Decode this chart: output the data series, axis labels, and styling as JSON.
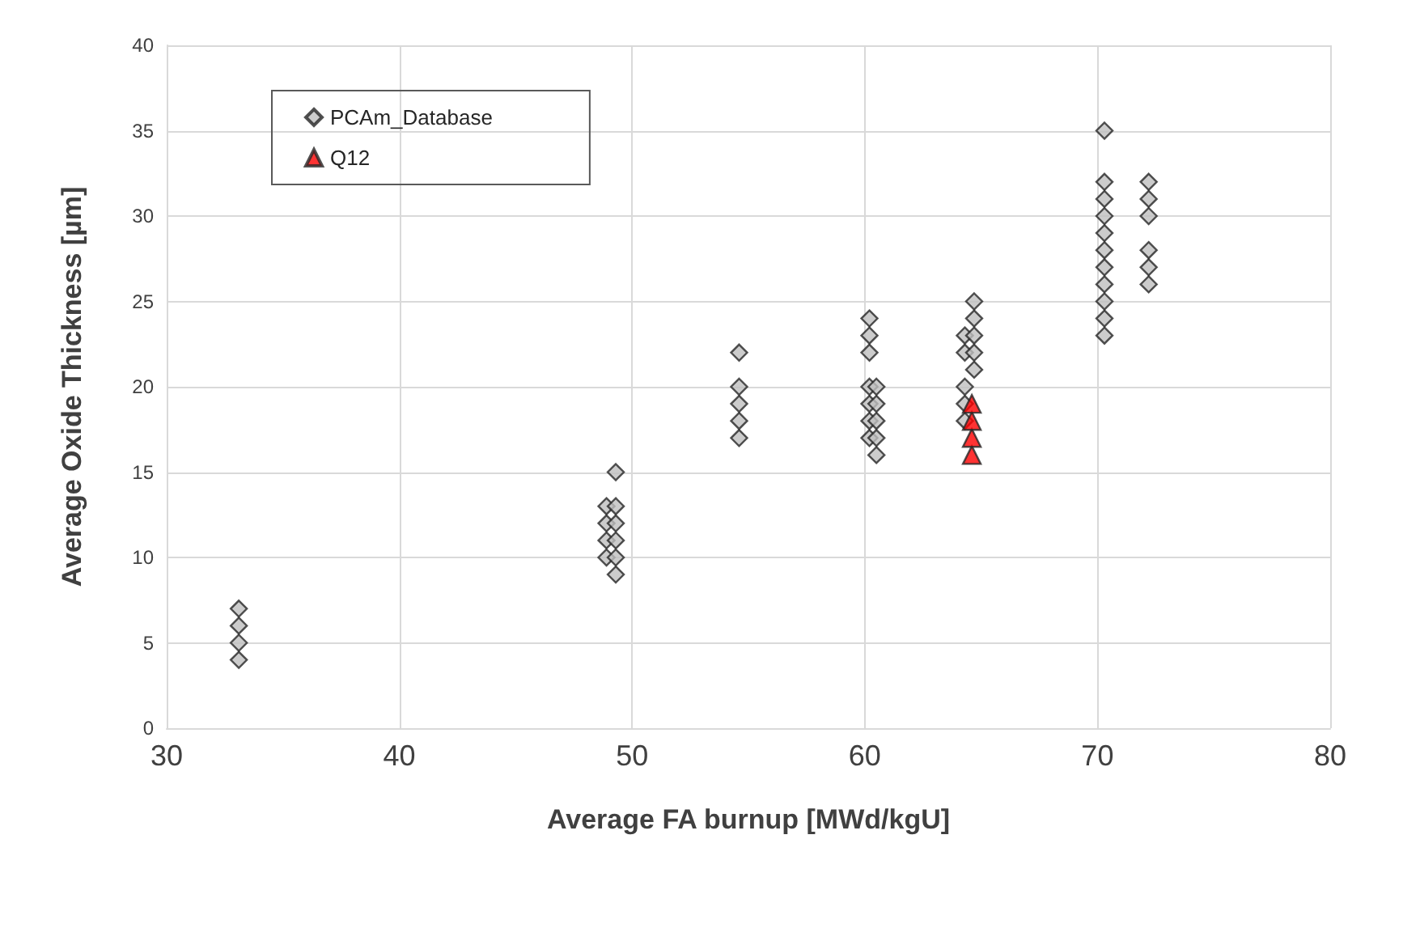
{
  "chart_data": {
    "type": "scatter",
    "xlabel": "Average FA burnup [MWd/kgU]",
    "ylabel": "Average Oxide Thickness [µm]",
    "xlim": [
      30,
      80
    ],
    "xticks": [
      30,
      40,
      50,
      60,
      70,
      80
    ],
    "ylim": [
      0,
      40
    ],
    "yticks": [
      0,
      5,
      10,
      15,
      20,
      25,
      30,
      35,
      40
    ],
    "grid": true,
    "legend": "top left",
    "series": [
      {
        "name": "PCAm_Database",
        "color": "#bfbfbf",
        "marker": "diamond",
        "x": [
          33.1,
          33.1,
          33.1,
          33.1,
          48.9,
          48.9,
          48.9,
          48.9,
          49.3,
          49.3,
          49.3,
          49.3,
          49.3,
          49.3,
          54.6,
          54.6,
          54.6,
          54.6,
          54.6,
          60.2,
          60.2,
          60.2,
          60.2,
          60.2,
          60.2,
          60.2,
          60.5,
          60.5,
          60.5,
          60.5,
          60.5,
          64.3,
          64.3,
          64.3,
          64.3,
          64.3,
          64.7,
          64.7,
          64.7,
          64.7,
          64.7,
          70.3,
          70.3,
          70.3,
          70.3,
          70.3,
          70.3,
          70.3,
          70.3,
          70.3,
          70.3,
          70.3,
          72.2,
          72.2,
          72.2,
          72.2,
          72.2,
          72.2
        ],
        "values": [
          4,
          5,
          6,
          7,
          10,
          11,
          12,
          13,
          9,
          10,
          11,
          12,
          13,
          15,
          17,
          18,
          19,
          20,
          22,
          17,
          18,
          19,
          20,
          22,
          23,
          24,
          16,
          17,
          18,
          19,
          20,
          18,
          19,
          20,
          22,
          23,
          21,
          22,
          23,
          24,
          25,
          23,
          24,
          25,
          26,
          27,
          28,
          29,
          30,
          31,
          32,
          35,
          26,
          27,
          28,
          30,
          31,
          32
        ]
      },
      {
        "name": "Q12",
        "color": "#ff0000",
        "marker": "triangle",
        "x": [
          64.6,
          64.6,
          64.6,
          64.6
        ],
        "values": [
          16,
          17,
          18,
          19
        ]
      }
    ]
  }
}
